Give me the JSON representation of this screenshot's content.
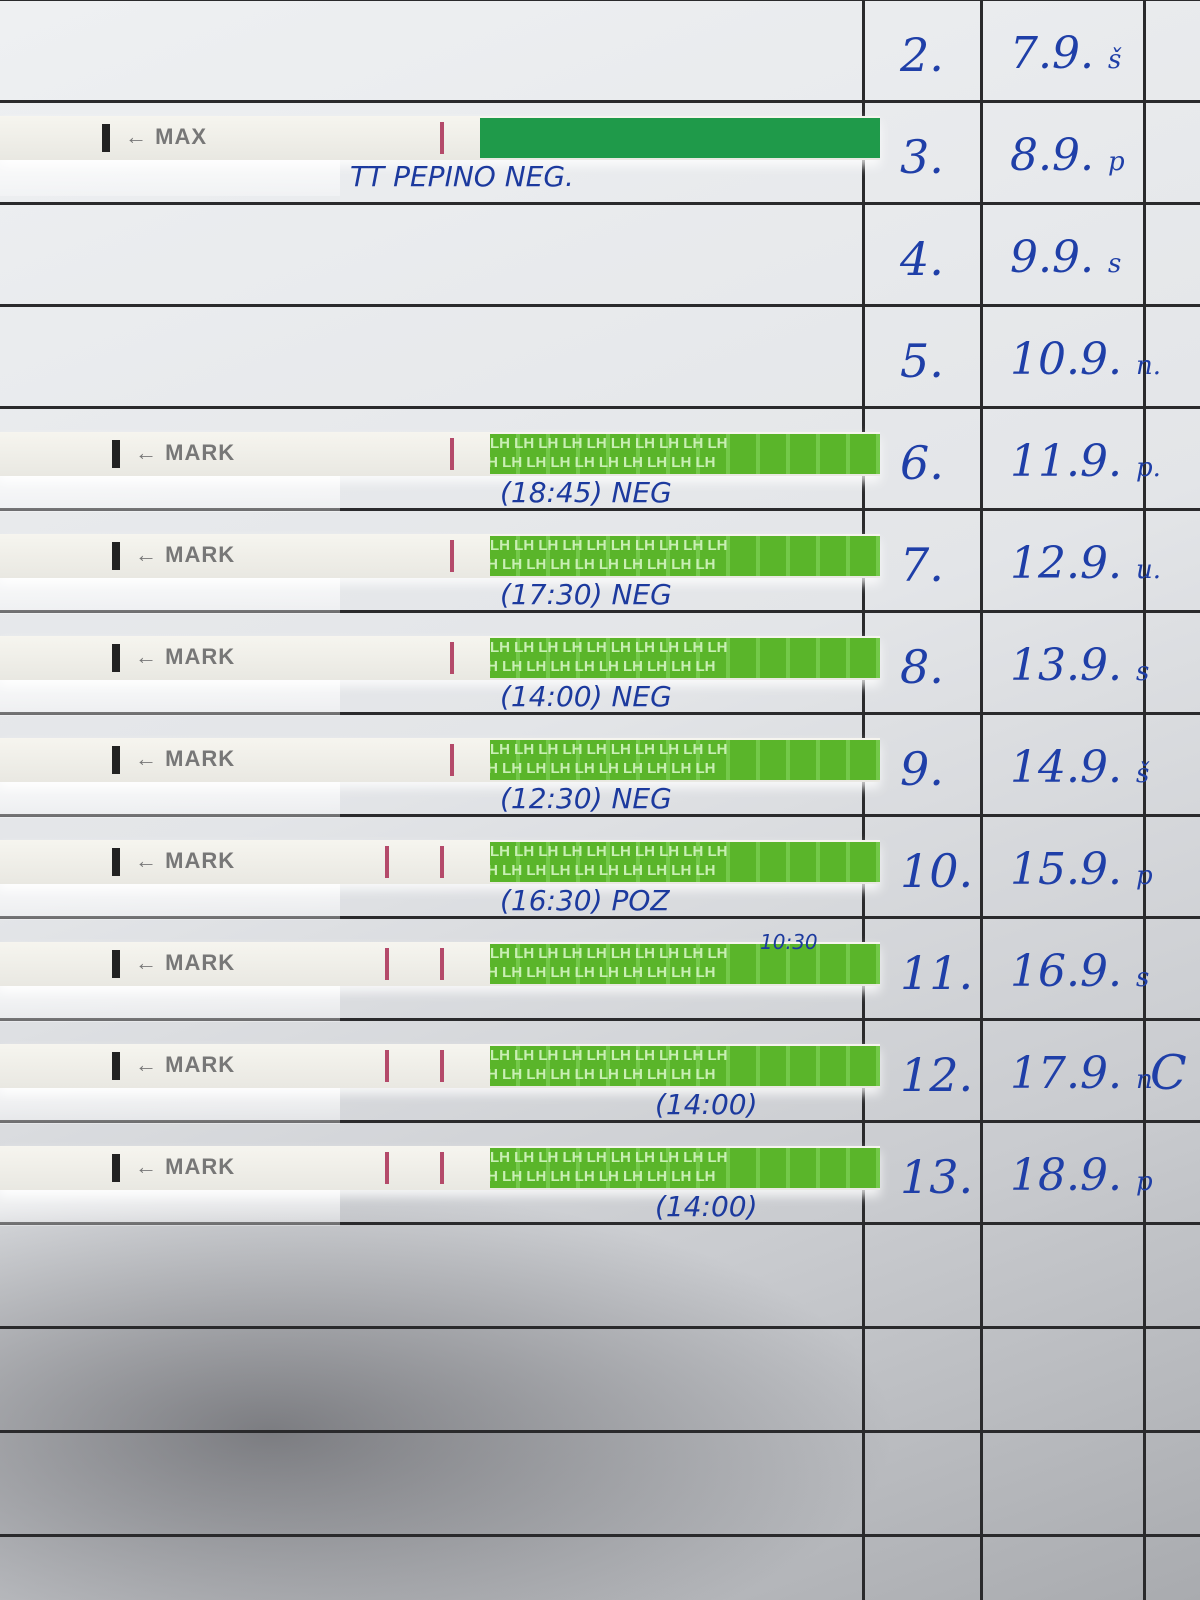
{
  "rows": [
    {
      "number": "2.",
      "date": "7.9.",
      "day": "š"
    },
    {
      "number": "3.",
      "date": "8.9.",
      "day": "p"
    },
    {
      "number": "4.",
      "date": "9.9.",
      "day": "s"
    },
    {
      "number": "5.",
      "date": "10.9.",
      "day": "n."
    },
    {
      "number": "6.",
      "date": "11.9.",
      "day": "p."
    },
    {
      "number": "7.",
      "date": "12.9.",
      "day": "u."
    },
    {
      "number": "8.",
      "date": "13.9.",
      "day": "s"
    },
    {
      "number": "9.",
      "date": "14.9.",
      "day": "š"
    },
    {
      "number": "10.",
      "date": "15.9.",
      "day": "p"
    },
    {
      "number": "11.",
      "date": "16.9.",
      "day": "s"
    },
    {
      "number": "12.",
      "date": "17.9.",
      "day": "n"
    },
    {
      "number": "13.",
      "date": "18.9.",
      "day": "p"
    }
  ],
  "extra_mark": "C",
  "strips": [
    {
      "row": 1,
      "label": "MAX",
      "band_text": "",
      "note": "TT PEPINO NEG.",
      "colors": {
        "band": "#1f9a4a"
      }
    },
    {
      "row": 4,
      "label": "MARK",
      "band_text": "LH LH LH LH LH LH LH LH LH LH",
      "note": "(18:45) NEG"
    },
    {
      "row": 5,
      "label": "MARK",
      "band_text": "LH LH LH LH LH LH LH LH LH LH",
      "note": "(17:30) NEG"
    },
    {
      "row": 6,
      "label": "MARK",
      "band_text": "LH LH LH LH LH LH LH LH LH LH",
      "note": "(14:00) NEG"
    },
    {
      "row": 7,
      "label": "MARK",
      "band_text": "LH LH LH LH LH LH LH LH LH LH",
      "note": "(12:30) NEG"
    },
    {
      "row": 8,
      "label": "MARK",
      "band_text": "LH LH LH LH LH LH LH LH LH LH",
      "note": "(16:30) POZ"
    },
    {
      "row": 9,
      "label": "MARK",
      "band_text": "LH LH LH LH LH LH LH LH LH LH",
      "note": "10:30"
    },
    {
      "row": 10,
      "label": "MARK",
      "band_text": "LH LH LH LH LH LH LH LH LH LH",
      "note": "(14:00)"
    },
    {
      "row": 11,
      "label": "MARK",
      "band_text": "LH LH LH LH LH LH LH LH LH LH",
      "note": "(14:00)"
    }
  ],
  "colors": {
    "ink": "#1f3fa8",
    "grid": "#2a2a2c",
    "lh_band": "#5ab52a",
    "test_line": "#b44a6a"
  }
}
